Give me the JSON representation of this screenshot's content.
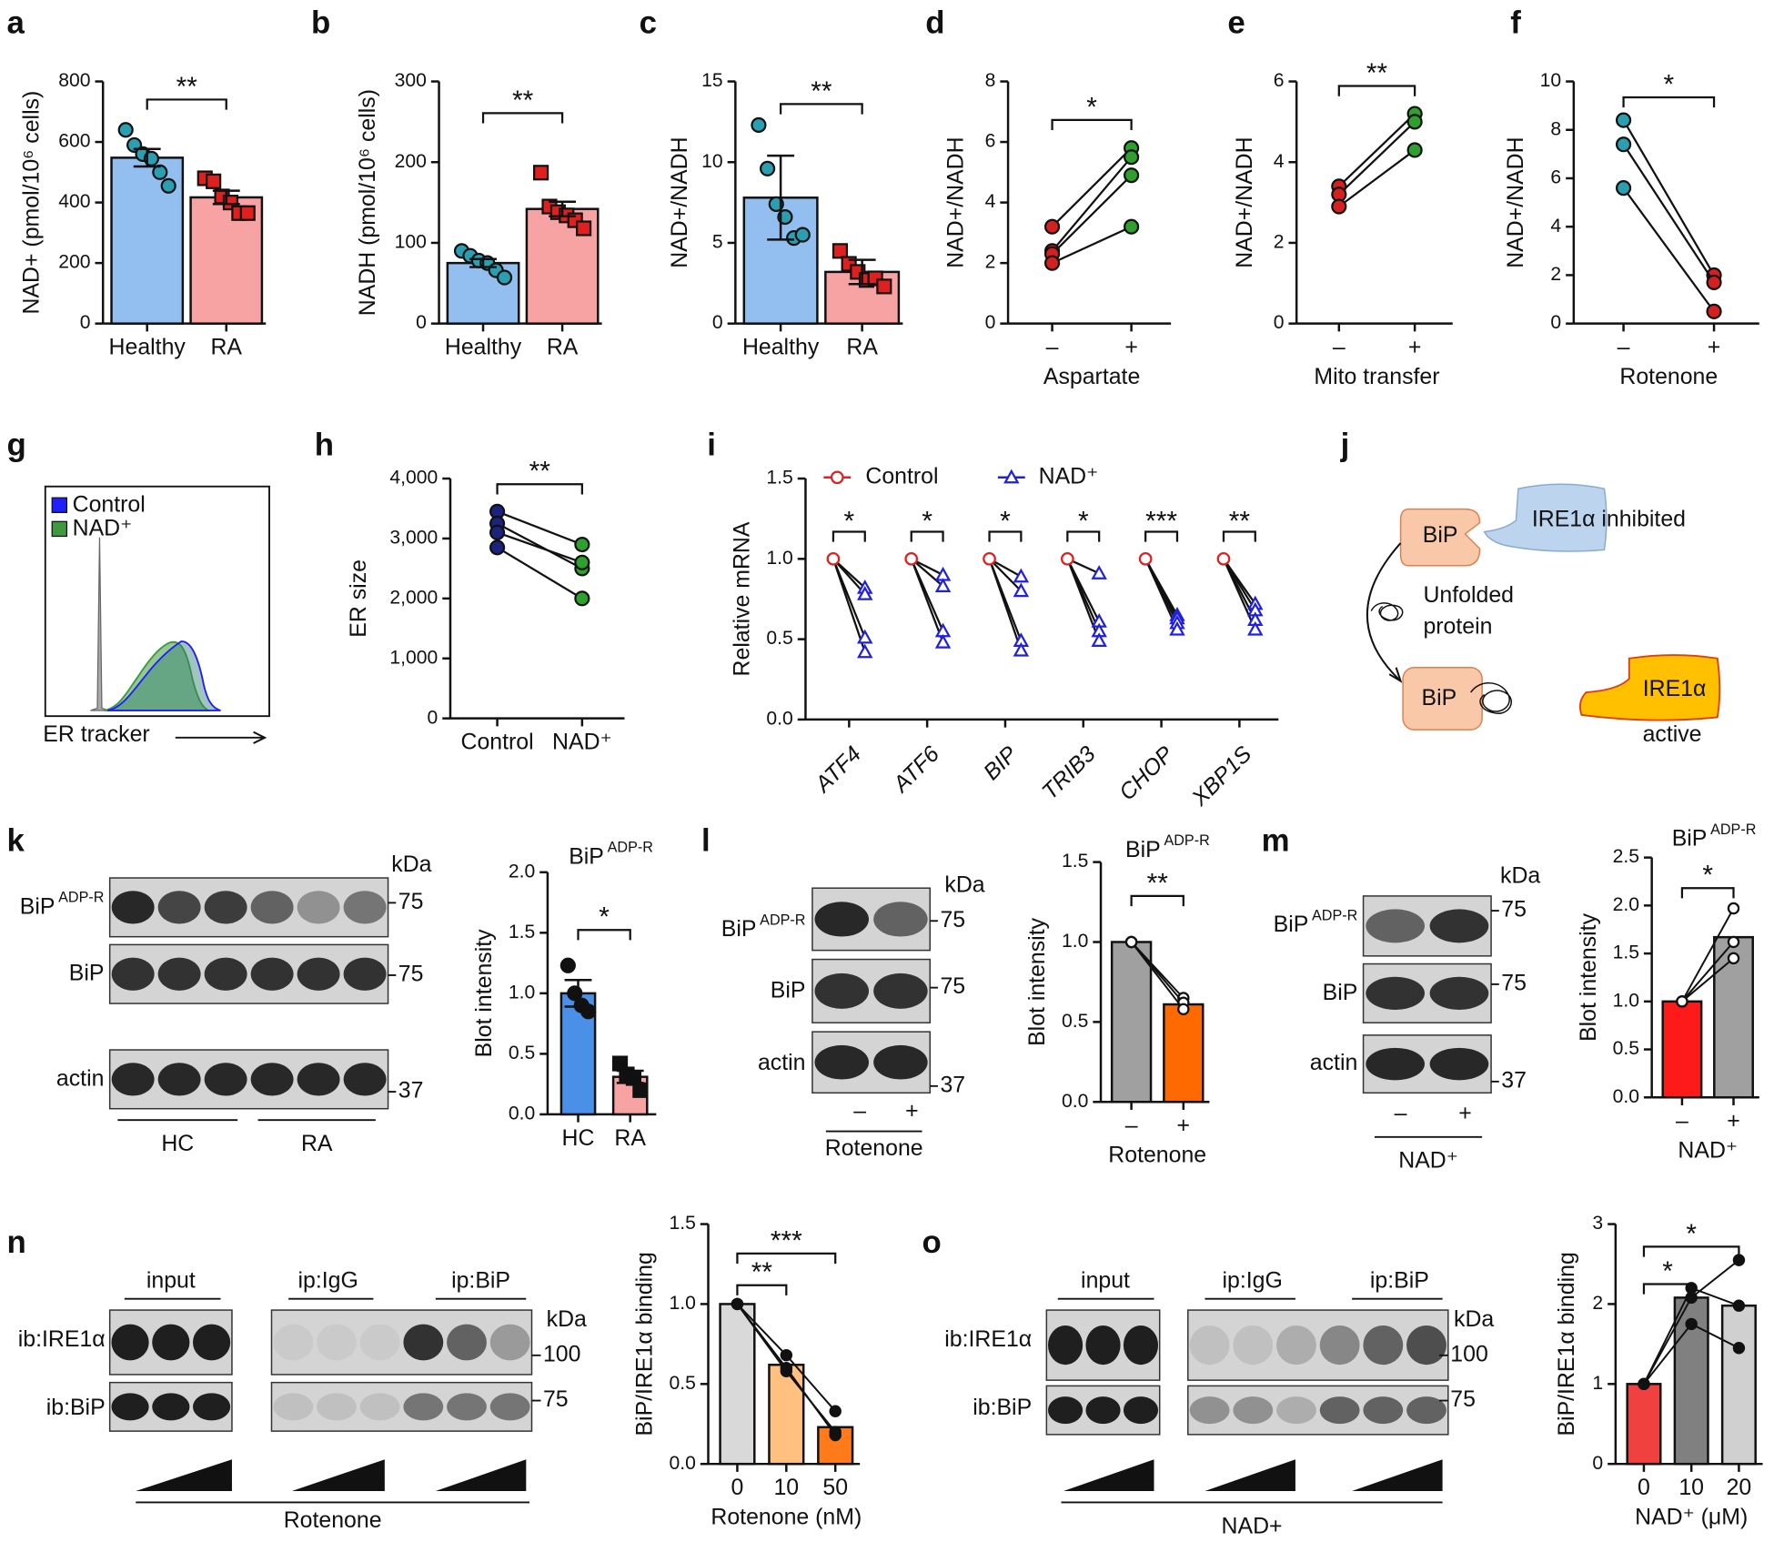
{
  "panel_labels": [
    "a",
    "b",
    "c",
    "d",
    "e",
    "f",
    "g",
    "h",
    "i",
    "j",
    "k",
    "l",
    "m",
    "n",
    "o"
  ],
  "chart_data": [
    {
      "type": "bar",
      "ylabel": "NAD+ (pmol/10⁶ cells)",
      "categories": [
        "Healthy",
        "RA"
      ],
      "values": [
        548,
        417
      ],
      "errors": [
        29,
        22
      ],
      "points": [
        [
          640,
          590,
          560,
          545,
          500,
          455
        ],
        [
          480,
          470,
          420,
          400,
          365,
          365
        ]
      ],
      "colors": [
        "#92bff0",
        "#f7a3a3"
      ],
      "point_colors": [
        "#2a9fb2",
        "#e01f1f"
      ],
      "point_markers": [
        "circle",
        "square"
      ],
      "ylim": [
        0,
        800
      ],
      "yticks": [
        0,
        200,
        400,
        600,
        800
      ],
      "significance": [
        {
          "from": 0,
          "to": 1,
          "label": "**"
        }
      ]
    },
    {
      "type": "bar",
      "ylabel": "NADH (pmol/10⁶ cells)",
      "categories": [
        "Healthy",
        "RA"
      ],
      "values": [
        75,
        142
      ],
      "errors": [
        5,
        9
      ],
      "points": [
        [
          90,
          84,
          78,
          75,
          66,
          57
        ],
        [
          187,
          145,
          138,
          134,
          128,
          118
        ]
      ],
      "colors": [
        "#92bff0",
        "#f7a3a3"
      ],
      "point_colors": [
        "#2a9fb2",
        "#e01f1f"
      ],
      "point_markers": [
        "circle",
        "square"
      ],
      "ylim": [
        0,
        300
      ],
      "yticks": [
        0,
        100,
        200,
        300
      ],
      "significance": [
        {
          "from": 0,
          "to": 1,
          "label": "**"
        }
      ]
    },
    {
      "type": "bar",
      "ylabel": "NAD+/NADH",
      "categories": [
        "Healthy",
        "RA"
      ],
      "values": [
        7.8,
        3.2
      ],
      "errors": [
        2.6,
        0.75
      ],
      "points": [
        [
          12.3,
          9.6,
          7.4,
          6.6,
          5.3,
          5.5
        ],
        [
          4.5,
          3.7,
          3.2,
          2.7,
          2.8,
          2.3
        ]
      ],
      "colors": [
        "#92bff0",
        "#f7a3a3"
      ],
      "point_colors": [
        "#2a9fb2",
        "#e01f1f"
      ],
      "point_markers": [
        "circle",
        "square"
      ],
      "ylim": [
        0,
        15
      ],
      "yticks": [
        0,
        5,
        10,
        15
      ],
      "significance": [
        {
          "from": 0,
          "to": 1,
          "label": "**"
        }
      ]
    },
    {
      "type": "line",
      "ylabel": "NAD+/NADH",
      "xlabel": "Aspartate",
      "categories": [
        "–",
        "+"
      ],
      "pairs": [
        [
          3.2,
          5.8
        ],
        [
          2.4,
          5.5
        ],
        [
          2.3,
          4.9
        ],
        [
          2.0,
          3.2
        ]
      ],
      "colors": [
        "#d42020",
        "#2ea02e"
      ],
      "ylim": [
        0,
        8
      ],
      "yticks": [
        0,
        2,
        4,
        6,
        8
      ],
      "significance": [
        {
          "from": 0,
          "to": 1,
          "label": "*"
        }
      ]
    },
    {
      "type": "line",
      "ylabel": "NAD+/NADH",
      "xlabel": "Mito transfer",
      "categories": [
        "–",
        "+"
      ],
      "pairs": [
        [
          3.4,
          5.2
        ],
        [
          3.2,
          5.0
        ],
        [
          2.9,
          4.3
        ]
      ],
      "colors": [
        "#d42020",
        "#2ea02e"
      ],
      "ylim": [
        0,
        6
      ],
      "yticks": [
        0,
        2,
        4,
        6
      ],
      "significance": [
        {
          "from": 0,
          "to": 1,
          "label": "**"
        }
      ]
    },
    {
      "type": "line",
      "ylabel": "NAD+/NADH",
      "xlabel": "Rotenone",
      "categories": [
        "–",
        "+"
      ],
      "pairs": [
        [
          8.4,
          2.0
        ],
        [
          7.4,
          1.7
        ],
        [
          5.6,
          0.5
        ]
      ],
      "colors": [
        "#2a9fb2",
        "#d42020"
      ],
      "ylim": [
        0,
        10
      ],
      "yticks": [
        0,
        2,
        4,
        6,
        8,
        10
      ],
      "significance": [
        {
          "from": 0,
          "to": 1,
          "label": "*"
        }
      ]
    },
    {
      "type": "density",
      "xlabel": "ER tracker",
      "series": [
        {
          "name": "Control",
          "color": "#1f1fff"
        },
        {
          "name": "NAD⁺",
          "color": "#3f9a3f"
        }
      ]
    },
    {
      "type": "line",
      "ylabel": "ER size",
      "categories": [
        "Control",
        "NAD⁺"
      ],
      "pairs": [
        [
          3450,
          2900
        ],
        [
          3250,
          2500
        ],
        [
          3100,
          2600
        ],
        [
          2850,
          2000
        ]
      ],
      "colors": [
        "#1a237e",
        "#2ea02e"
      ],
      "ylim": [
        0,
        4000
      ],
      "yticks": [
        0,
        {
          "value": 1000,
          "label": "1,000"
        },
        {
          "value": 2000,
          "label": "2,000"
        },
        {
          "value": 3000,
          "label": "3,000"
        },
        {
          "value": 4000,
          "label": "4,000"
        }
      ],
      "significance": [
        {
          "from": 0,
          "to": 1,
          "label": "**"
        }
      ]
    },
    {
      "type": "dot",
      "ylabel": "Relative mRNA",
      "categories": [
        "ATF4",
        "ATF6",
        "BIP",
        "TRIB3",
        "CHOP",
        "XBP1S"
      ],
      "series": [
        {
          "name": "Control",
          "color": "#e02020",
          "marker": "circle",
          "values": [
            1,
            1,
            1,
            1,
            1,
            1
          ]
        },
        {
          "name": "NAD⁺",
          "color": "#2020e0",
          "marker": "triangle",
          "values": [
            [
              0.82,
              0.78,
              0.51,
              0.42
            ],
            [
              0.9,
              0.83,
              0.55,
              0.48
            ],
            [
              0.89,
              0.8,
              0.49,
              0.43
            ],
            [
              0.91,
              0.61,
              0.55,
              0.49
            ],
            [
              0.65,
              0.63,
              0.6,
              0.56
            ],
            [
              0.72,
              0.68,
              0.62,
              0.56
            ]
          ]
        }
      ],
      "ylim": [
        0,
        1.5
      ],
      "yticks": [
        {
          "value": 0,
          "label": "0.0"
        },
        0.5,
        {
          "value": 1,
          "label": "1.0"
        },
        1.5
      ],
      "significance": [
        "*",
        "*",
        "*",
        "*",
        "***",
        "**"
      ]
    },
    {
      "type": "bar",
      "title": "BiP",
      "title_sup": "ADP-R",
      "ylabel": "Blot intensity",
      "categories": [
        "HC",
        "RA"
      ],
      "values": [
        1.0,
        0.31
      ],
      "errors": [
        0.11,
        0.05
      ],
      "points": [
        [
          1.23,
          1.0,
          0.9,
          0.85
        ],
        [
          0.42,
          0.33,
          0.3,
          0.2
        ]
      ],
      "colors": [
        "#4a90e8",
        "#f7a3a3"
      ],
      "point_colors": [
        "#111111",
        "#111111"
      ],
      "point_markers": [
        "circle",
        "square"
      ],
      "ylim": [
        0,
        2
      ],
      "yticks": [
        {
          "value": 0,
          "label": "0.0"
        },
        0.5,
        {
          "value": 1,
          "label": "1.0"
        },
        1.5,
        {
          "value": 2,
          "label": "2.0"
        }
      ],
      "significance": [
        {
          "from": 0,
          "to": 1,
          "label": "*"
        }
      ]
    },
    {
      "type": "bar",
      "title": "BiP",
      "title_sup": "ADP-R",
      "ylabel": "Blot intensity",
      "xlabel": "Rotenone",
      "categories": [
        "–",
        "+"
      ],
      "values": [
        1.0,
        0.61
      ],
      "replicates": [
        [
          1.0,
          0.65
        ],
        [
          1.0,
          0.62
        ],
        [
          1.0,
          0.58
        ]
      ],
      "colors": [
        "#a0a0a0",
        "#ff6a00"
      ],
      "replicate_color": "#ffffff",
      "ylim": [
        0,
        1.5
      ],
      "yticks": [
        {
          "value": 0,
          "label": "0.0"
        },
        0.5,
        {
          "value": 1,
          "label": "1.0"
        },
        1.5
      ],
      "significance": [
        {
          "from": 0,
          "to": 1,
          "label": "**"
        }
      ]
    },
    {
      "type": "bar",
      "title": "BiP",
      "title_sup": "ADP-R",
      "ylabel": "Blot intensity",
      "xlabel": "NAD⁺",
      "categories": [
        "–",
        "+"
      ],
      "values": [
        1.0,
        1.67
      ],
      "replicates": [
        [
          1.0,
          1.97
        ],
        [
          1.0,
          1.62
        ],
        [
          1.0,
          1.45
        ]
      ],
      "colors": [
        "#ff1a1a",
        "#a0a0a0"
      ],
      "replicate_color": "#ffffff",
      "ylim": [
        0,
        2.5
      ],
      "yticks": [
        {
          "value": 0,
          "label": "0.0"
        },
        0.5,
        {
          "value": 1,
          "label": "1.0"
        },
        1.5,
        {
          "value": 2,
          "label": "2.0"
        },
        2.5
      ],
      "significance": [
        {
          "from": 0,
          "to": 1,
          "label": "*"
        }
      ]
    },
    {
      "type": "bar",
      "ylabel": "BiP/IRE1α binding",
      "xlabel": "Rotenone (nM)",
      "categories": [
        0,
        10,
        50
      ],
      "values": [
        1.0,
        0.62,
        0.23
      ],
      "replicates": [
        [
          1.0,
          0.68,
          0.33
        ],
        [
          1.0,
          0.6,
          0.18
        ],
        [
          1.0,
          0.58,
          0.2
        ]
      ],
      "colors": [
        "#d9d9d9",
        "#ffc080",
        "#ff7a1a"
      ],
      "replicate_color": "#111111",
      "ylim": [
        0,
        1.5
      ],
      "yticks": [
        {
          "value": 0,
          "label": "0.0"
        },
        0.5,
        {
          "value": 1,
          "label": "1.0"
        },
        1.5
      ],
      "significance": [
        {
          "from": 0,
          "to": 1,
          "label": "**"
        },
        {
          "from": 0,
          "to": 2,
          "label": "***"
        }
      ]
    },
    {
      "type": "bar",
      "ylabel": "BiP/IRE1α binding",
      "xlabel": "NAD⁺ (μM)",
      "categories": [
        0,
        10,
        20
      ],
      "values": [
        1.0,
        2.08,
        1.98
      ],
      "replicates": [
        [
          1.0,
          2.2,
          1.98
        ],
        [
          1.0,
          2.08,
          2.55
        ],
        [
          1.0,
          1.75,
          1.45
        ]
      ],
      "colors": [
        "#f04040",
        "#808080",
        "#d0d0d0"
      ],
      "replicate_color": "#111111",
      "ylim": [
        0,
        3
      ],
      "yticks": [
        0,
        1,
        2,
        3
      ],
      "significance": [
        {
          "from": 0,
          "to": 1,
          "label": "*"
        },
        {
          "from": 0,
          "to": 2,
          "label": "*"
        }
      ]
    }
  ],
  "diagram": {
    "bip_top": "BiP",
    "ire1_top": "IRE1α inhibited",
    "unfolded": "Unfolded",
    "protein": "protein",
    "bip_bottom": "BiP",
    "ire1_bottom": "IRE1α",
    "active": "active"
  },
  "blots": {
    "k": {
      "rows": [
        {
          "main": "BiP",
          "sup": "ADP-R"
        },
        {
          "main": "BiP"
        },
        {
          "main": "actin"
        }
      ],
      "kda_title": "kDa",
      "kda": [
        75,
        75,
        37
      ],
      "groups": [
        "HC",
        "RA"
      ]
    },
    "l": {
      "rows": [
        {
          "main": "BiP",
          "sup": "ADP-R"
        },
        {
          "main": "BiP"
        },
        {
          "main": "actin"
        }
      ],
      "kda_title": "kDa",
      "kda": [
        75,
        75,
        37
      ],
      "lanes": [
        "–",
        "+"
      ],
      "treatment": "Rotenone"
    },
    "m": {
      "rows": [
        {
          "main": "BiP",
          "sup": "ADP-R"
        },
        {
          "main": "BiP"
        },
        {
          "main": "actin"
        }
      ],
      "kda_title": "kDa",
      "kda": [
        75,
        75,
        37
      ],
      "lanes": [
        "–",
        "+"
      ],
      "treatment": "NAD⁺"
    },
    "n": {
      "groups": [
        "input",
        "ip:IgG",
        "ip:BiP"
      ],
      "rows": [
        "ib:IRE1α",
        "ib:BiP"
      ],
      "kda_title": "kDa",
      "kda": [
        100,
        75
      ],
      "treatment": "Rotenone"
    },
    "o": {
      "groups": [
        "input",
        "ip:IgG",
        "ip:BiP"
      ],
      "rows": [
        "ib:IRE1α",
        "ib:BiP"
      ],
      "kda_title": "kDa",
      "kda": [
        100,
        75
      ],
      "treatment": "NAD+"
    }
  }
}
